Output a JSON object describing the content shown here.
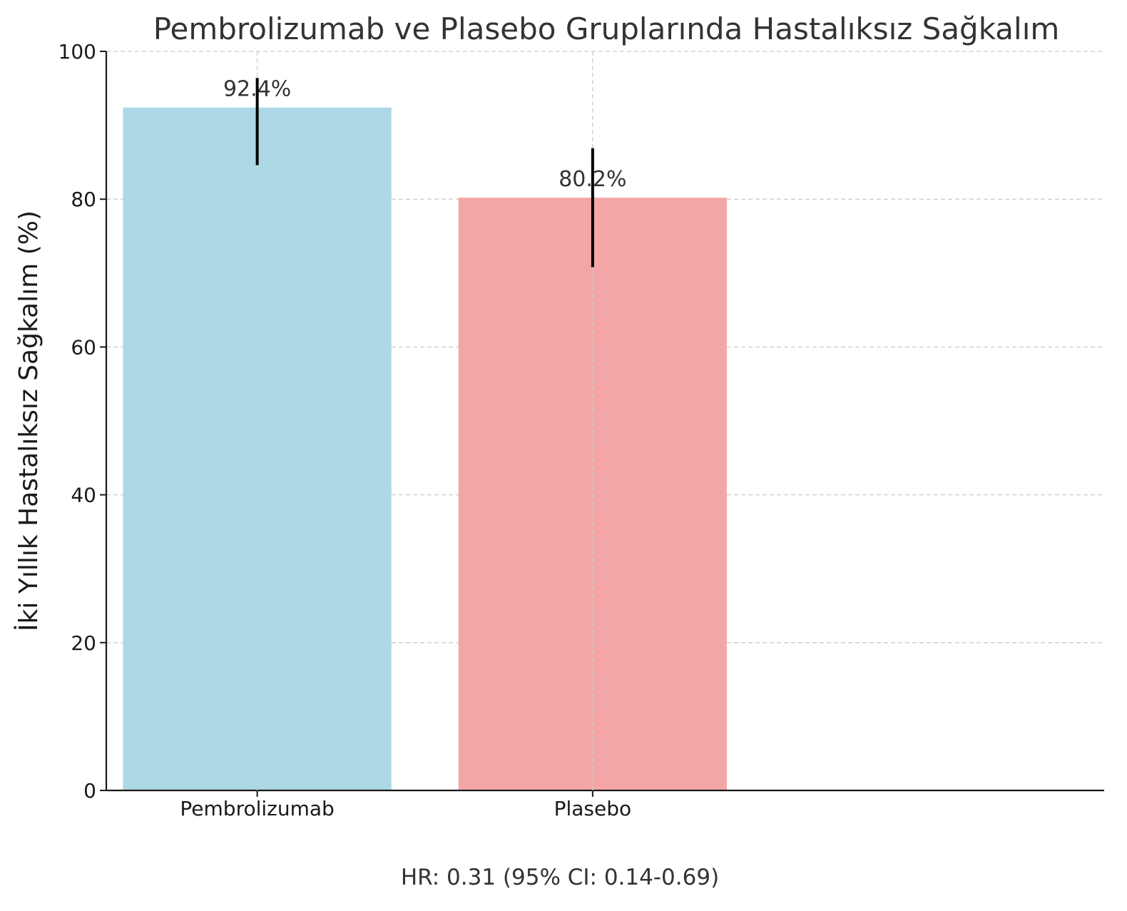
{
  "chart_data": {
    "type": "bar",
    "title": "Pembrolizumab ve Plasebo Gruplarında Hastalıksız Sağkalım",
    "xlabel": "",
    "ylabel": "İki Yıllık Hastalıksız Sağkalım (%)",
    "categories": [
      "Pembrolizumab",
      "Plasebo"
    ],
    "values": [
      92.4,
      80.2
    ],
    "value_labels": [
      "92.4%",
      "80.2%"
    ],
    "error_bars": [
      {
        "low": 84.6,
        "high": 96.4
      },
      {
        "low": 70.8,
        "high": 86.9
      }
    ],
    "colors": [
      "#add8e6",
      "#f4a6a6"
    ],
    "ylim": [
      0,
      100
    ],
    "yticks": [
      "0",
      "20",
      "40",
      "60",
      "80",
      "100"
    ],
    "grid": true,
    "legend": "none",
    "annotation": "HR: 0.31 (95% CI: 0.14-0.69)"
  }
}
